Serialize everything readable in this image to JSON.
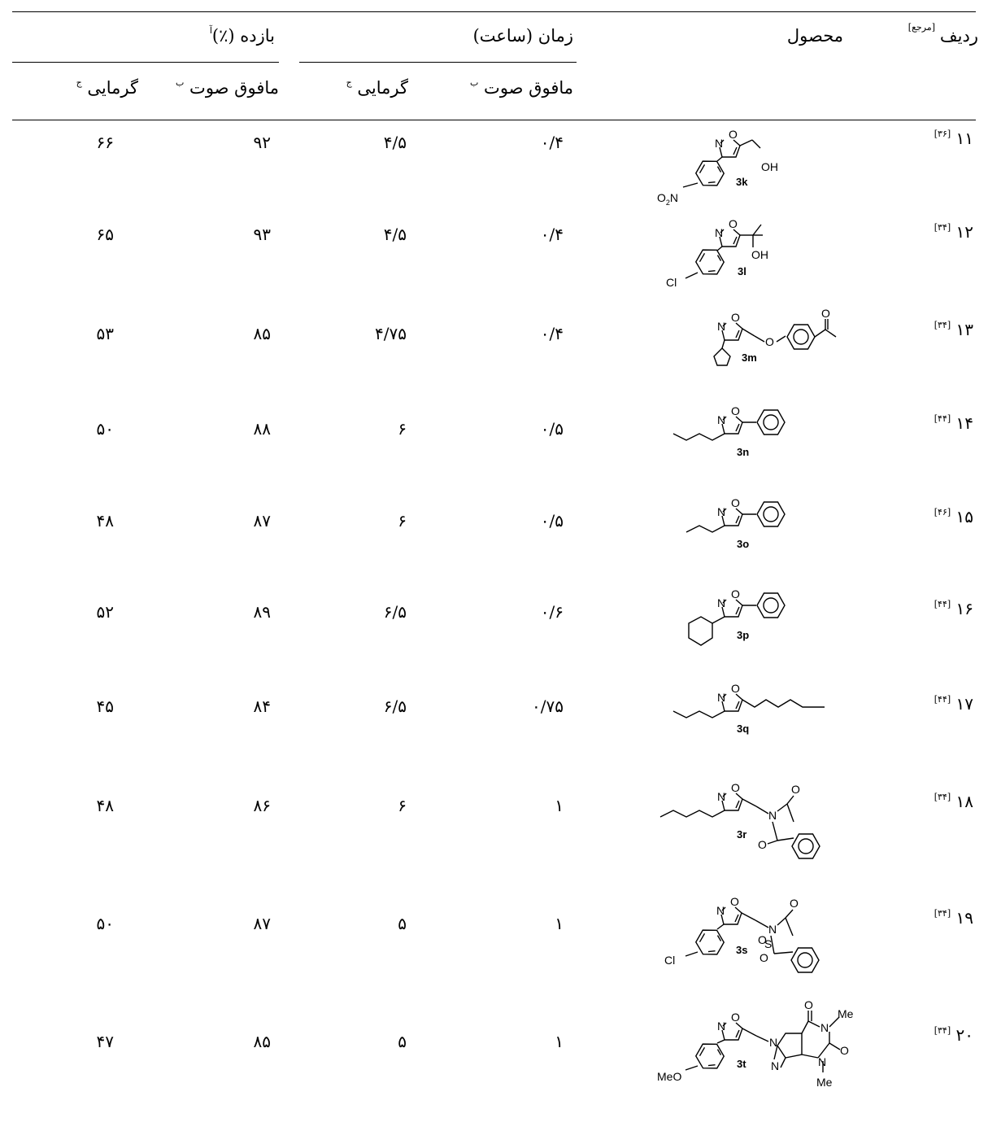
{
  "header": {
    "entry_label": "ردیف",
    "ref_label": "[مرجع]",
    "product_label": "محصول",
    "time_group": "زمان (ساعت)",
    "yield_group": "بازده (٪)",
    "yield_sup": "آ",
    "sub_ultrasound": "مافوق صوت",
    "sub_ultrasound_sup": "ب",
    "sub_thermal": "گرمایی",
    "sub_thermal_sup": "ج"
  },
  "rows": [
    {
      "entry": "۱۱",
      "ref": "[۳۶]",
      "compound": "3k",
      "time_us": "۰/۴",
      "time_th": "۴/۵",
      "yield_us": "۹۲",
      "yield_th": "۶۶"
    },
    {
      "entry": "۱۲",
      "ref": "[۳۴]",
      "compound": "3l",
      "time_us": "۰/۴",
      "time_th": "۴/۵",
      "yield_us": "۹۳",
      "yield_th": "۶۵"
    },
    {
      "entry": "۱۳",
      "ref": "[۳۴]",
      "compound": "3m",
      "time_us": "۰/۴",
      "time_th": "۴/۷۵",
      "yield_us": "۸۵",
      "yield_th": "۵۳"
    },
    {
      "entry": "۱۴",
      "ref": "[۴۴]",
      "compound": "3n",
      "time_us": "۰/۵",
      "time_th": "۶",
      "yield_us": "۸۸",
      "yield_th": "۵۰"
    },
    {
      "entry": "۱۵",
      "ref": "[۴۶]",
      "compound": "3o",
      "time_us": "۰/۵",
      "time_th": "۶",
      "yield_us": "۸۷",
      "yield_th": "۴۸"
    },
    {
      "entry": "۱۶",
      "ref": "[۴۴]",
      "compound": "3p",
      "time_us": "۰/۶",
      "time_th": "۶/۵",
      "yield_us": "۸۹",
      "yield_th": "۵۲"
    },
    {
      "entry": "۱۷",
      "ref": "[۴۴]",
      "compound": "3q",
      "time_us": "۰/۷۵",
      "time_th": "۶/۵",
      "yield_us": "۸۴",
      "yield_th": "۴۵"
    },
    {
      "entry": "۱۸",
      "ref": "[۳۴]",
      "compound": "3r",
      "time_us": "۱",
      "time_th": "۶",
      "yield_us": "۸۶",
      "yield_th": "۴۸"
    },
    {
      "entry": "۱۹",
      "ref": "[۳۴]",
      "compound": "3s",
      "time_us": "۱",
      "time_th": "۵",
      "yield_us": "۸۷",
      "yield_th": "۵۰"
    },
    {
      "entry": "۲۰",
      "ref": "[۳۴]",
      "compound": "3t",
      "time_us": "۱",
      "time_th": "۵",
      "yield_us": "۸۵",
      "yield_th": "۴۷"
    }
  ],
  "labels": {
    "N": "N",
    "O": "O",
    "OH": "OH",
    "Cl": "Cl",
    "Me": "Me",
    "MeO": "MeO",
    "S": "S",
    "O2N_main": "O",
    "O2N_sub": "2",
    "O2N_tail": "N"
  }
}
